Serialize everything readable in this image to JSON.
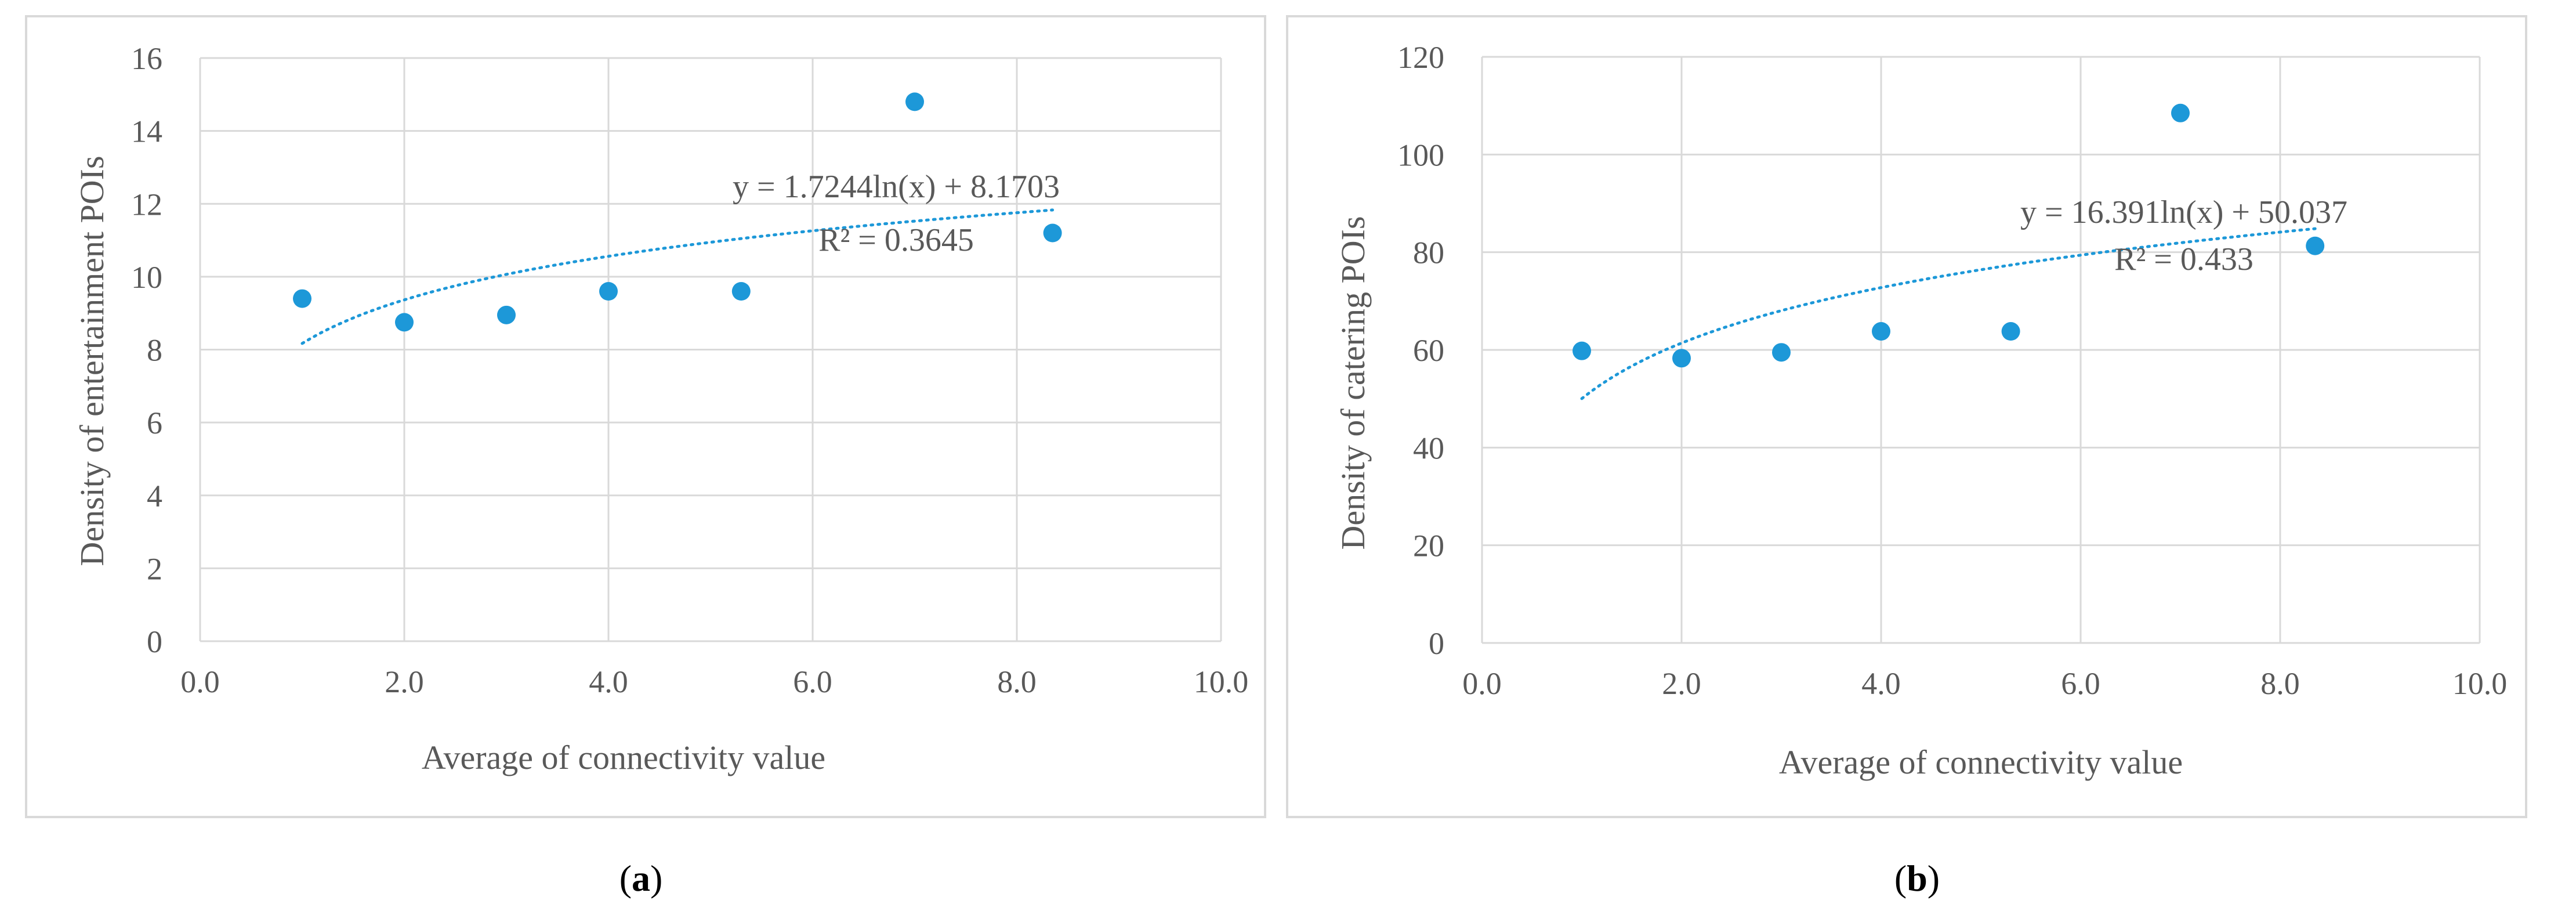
{
  "chart_data": [
    {
      "type": "scatter",
      "panel_label": "a",
      "xlabel": "Average of connectivity value",
      "ylabel": "Density of  entertainment POIs",
      "xlim": [
        0,
        10
      ],
      "ylim": [
        0,
        16
      ],
      "x_ticks": [
        0,
        2,
        4,
        6,
        8,
        10
      ],
      "x_tick_labels": [
        "0.0",
        "2.0",
        "4.0",
        "6.0",
        "8.0",
        "10.0"
      ],
      "y_ticks": [
        0,
        2,
        4,
        6,
        8,
        10,
        12,
        14,
        16
      ],
      "y_tick_labels": [
        "0",
        "2",
        "4",
        "6",
        "8",
        "10",
        "12",
        "14",
        "16"
      ],
      "grid": true,
      "series": [
        {
          "name": "Density of entertainment POIs",
          "x": [
            1.0,
            2.0,
            3.0,
            4.0,
            5.3,
            7.0,
            8.35
          ],
          "y": [
            9.4,
            8.75,
            8.95,
            9.6,
            9.6,
            14.8,
            11.2
          ]
        }
      ],
      "trendline": {
        "type": "logarithmic",
        "a": 1.7244,
        "b": 8.1703,
        "x_range": [
          1.0,
          8.35
        ],
        "equation": "y = 1.7244ln(x) + 8.1703",
        "r_squared": "R² = 0.3645"
      }
    },
    {
      "type": "scatter",
      "panel_label": "b",
      "xlabel": "Average of connectivity value",
      "ylabel": "Density of  catering POIs",
      "xlim": [
        0,
        10
      ],
      "ylim": [
        0,
        120
      ],
      "x_ticks": [
        0,
        2,
        4,
        6,
        8,
        10
      ],
      "x_tick_labels": [
        "0.0",
        "2.0",
        "4.0",
        "6.0",
        "8.0",
        "10.0"
      ],
      "y_ticks": [
        0,
        20,
        40,
        60,
        80,
        100,
        120
      ],
      "y_tick_labels": [
        "0",
        "20",
        "40",
        "60",
        "80",
        "100",
        "120"
      ],
      "grid": true,
      "series": [
        {
          "name": "Density of catering POIs",
          "x": [
            1.0,
            2.0,
            3.0,
            4.0,
            5.3,
            7.0,
            8.35
          ],
          "y": [
            59.8,
            58.3,
            59.5,
            63.8,
            63.8,
            108.5,
            81.3
          ]
        }
      ],
      "trendline": {
        "type": "logarithmic",
        "a": 16.391,
        "b": 50.037,
        "x_range": [
          1.0,
          8.35
        ],
        "equation": "y = 16.391ln(x) + 50.037",
        "r_squared": "R² = 0.433"
      }
    }
  ]
}
